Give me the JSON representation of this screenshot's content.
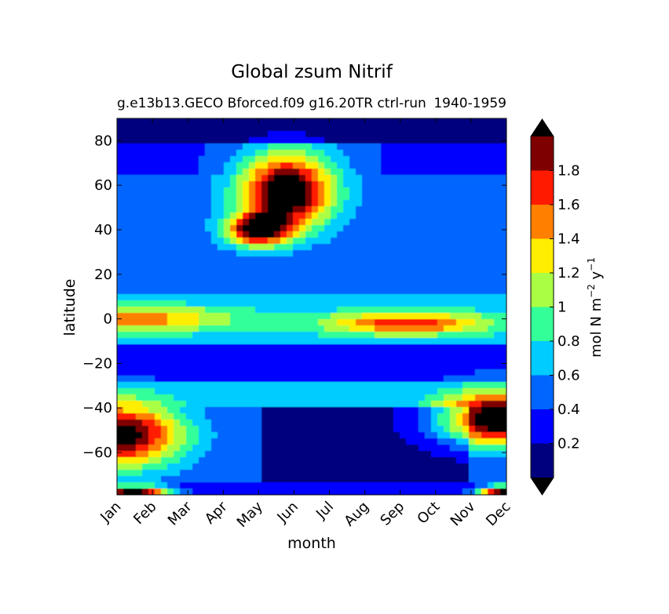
{
  "chart_data": {
    "type": "heatmap",
    "subtype": "filled-contour",
    "title": "Global zsum Nitrif",
    "subtitle_left": "g.e13b13.GECO Bforced.f09 g16.20TR ctrl-run",
    "subtitle_right": "1940-1959",
    "xlabel": "month",
    "ylabel": "latitude",
    "x_categories": [
      "Jan",
      "Feb",
      "Mar",
      "Apr",
      "May",
      "Jun",
      "Jul",
      "Aug",
      "Sep",
      "Oct",
      "Nov",
      "Dec"
    ],
    "xlim": [
      0,
      11
    ],
    "ylim": [
      -79,
      90
    ],
    "y_ticks": [
      80,
      60,
      40,
      20,
      0,
      -20,
      -40,
      -60
    ],
    "y_tick_labels": [
      "80",
      "60",
      "40",
      "20",
      "0",
      "−20",
      "−40",
      "−60"
    ],
    "colorbar": {
      "label_text": "mol N m",
      "label_sup1": "−2",
      "label_mid": " y",
      "label_sup2": "−1",
      "levels": [
        0,
        0.2,
        0.4,
        0.6,
        0.8,
        1.0,
        1.2,
        1.4,
        1.6,
        1.8,
        2.0
      ],
      "tick_values": [
        0.2,
        0.4,
        0.6,
        0.8,
        1.0,
        1.2,
        1.4,
        1.6,
        1.8
      ],
      "tick_labels": [
        "0.2",
        "0.4",
        "0.6",
        "0.8",
        "1",
        "1.2",
        "1.4",
        "1.6",
        "1.8"
      ],
      "colors": [
        "#00007f",
        "#0000ff",
        "#0066ff",
        "#00ccff",
        "#33ff99",
        "#aaff44",
        "#ffee00",
        "#ff7f00",
        "#ff1a00",
        "#7f0000"
      ],
      "extend": "both",
      "under_color": "#000000",
      "over_color": "#000000"
    },
    "field_features": [
      {
        "month": 4.8,
        "lat": 57,
        "peak": 1.9,
        "sx": 0.9,
        "sy": 11
      },
      {
        "month": 4.0,
        "lat": 40,
        "peak": 1.7,
        "sx": 0.6,
        "sy": 5
      },
      {
        "month": 0.1,
        "lat": -52,
        "peak": 1.75,
        "sx": 1.2,
        "sy": 10
      },
      {
        "month": 10.8,
        "lat": -45,
        "peak": 1.9,
        "sx": 1.2,
        "sy": 8
      },
      {
        "month": 8.2,
        "lat": -2,
        "peak": 1.1,
        "sx": 1.6,
        "sy": 3.5
      },
      {
        "month": 0.5,
        "lat": 0,
        "peak": 0.85,
        "sx": 2.0,
        "sy": 4
      },
      {
        "month": 0.4,
        "lat": -77,
        "peak": 2.0,
        "sx": 0.8,
        "sy": 1.5
      },
      {
        "month": 10.9,
        "lat": -77,
        "peak": 2.0,
        "sx": 0.5,
        "sy": 1.5
      }
    ]
  }
}
